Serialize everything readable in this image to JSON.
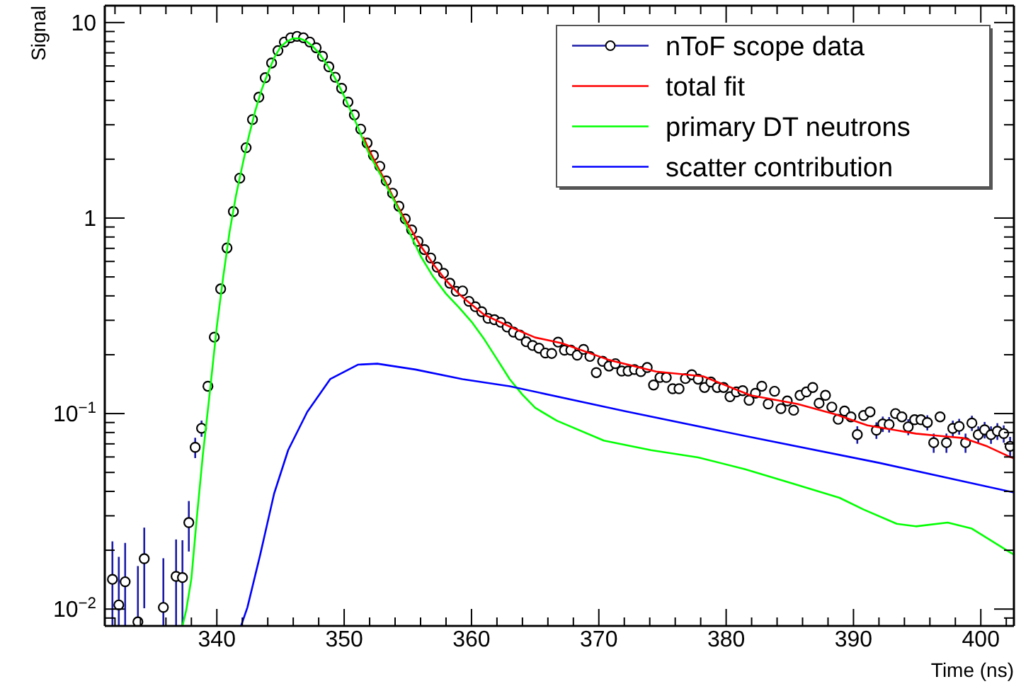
{
  "chart_data": {
    "type": "line",
    "xlabel": "Time (ns)",
    "ylabel": "Signal",
    "log": true,
    "legend": "top right",
    "grid": false,
    "xlim": [
      331.2,
      402.6
    ],
    "ylim": [
      0.0082,
      12.2
    ],
    "xticks": [
      {
        "value": 332,
        "label": null
      },
      {
        "value": 334,
        "label": null
      },
      {
        "value": 336,
        "label": null
      },
      {
        "value": 338,
        "label": null
      },
      340,
      {
        "value": 342,
        "label": null
      },
      {
        "value": 344,
        "label": null
      },
      {
        "value": 346,
        "label": null
      },
      {
        "value": 348,
        "label": null
      },
      350,
      {
        "value": 352,
        "label": null
      },
      {
        "value": 354,
        "label": null
      },
      {
        "value": 356,
        "label": null
      },
      {
        "value": 358,
        "label": null
      },
      360,
      {
        "value": 362,
        "label": null
      },
      {
        "value": 364,
        "label": null
      },
      {
        "value": 366,
        "label": null
      },
      {
        "value": 368,
        "label": null
      },
      370,
      {
        "value": 372,
        "label": null
      },
      {
        "value": 374,
        "label": null
      },
      {
        "value": 376,
        "label": null
      },
      {
        "value": 378,
        "label": null
      },
      380,
      {
        "value": 382,
        "label": null
      },
      {
        "value": 384,
        "label": null
      },
      {
        "value": 386,
        "label": null
      },
      {
        "value": 388,
        "label": null
      },
      390,
      {
        "value": 392,
        "label": null
      },
      {
        "value": 394,
        "label": null
      },
      {
        "value": 396,
        "label": null
      },
      {
        "value": 398,
        "label": null
      },
      400,
      {
        "value": 402,
        "label": null
      }
    ],
    "yticks": [
      {
        "value": 0.009,
        "label": null
      },
      {
        "value": 0.01,
        "label": "10$^{−2}$"
      },
      {
        "value": 0.02,
        "label": null
      },
      {
        "value": 0.03,
        "label": null
      },
      {
        "value": 0.04,
        "label": null
      },
      {
        "value": 0.05,
        "label": null
      },
      {
        "value": 0.06,
        "label": null
      },
      {
        "value": 0.07,
        "label": null
      },
      {
        "value": 0.08,
        "label": null
      },
      {
        "value": 0.09,
        "label": null
      },
      {
        "value": 0.1,
        "label": "10$^{−1}$"
      },
      {
        "value": 0.2,
        "label": null
      },
      {
        "value": 0.3,
        "label": null
      },
      {
        "value": 0.4,
        "label": null
      },
      {
        "value": 0.5,
        "label": null
      },
      {
        "value": 0.6,
        "label": null
      },
      {
        "value": 0.7,
        "label": null
      },
      {
        "value": 0.8,
        "label": null
      },
      {
        "value": 0.9,
        "label": null
      },
      1,
      {
        "value": 2,
        "label": null
      },
      {
        "value": 3,
        "label": null
      },
      {
        "value": 4,
        "label": null
      },
      {
        "value": 5,
        "label": null
      },
      {
        "value": 6,
        "label": null
      },
      {
        "value": 7,
        "label": null
      },
      {
        "value": 8,
        "label": null
      },
      {
        "value": 9,
        "label": null
      },
      10
    ],
    "series": [
      {
        "type": "scatter",
        "name": "nToF scope data",
        "color": "#000000",
        "marker": "circle",
        "x": [
          331.8,
          332.3,
          332.8,
          333.8,
          334.3,
          335.8,
          336.8,
          337.3,
          337.8,
          338.3,
          338.8,
          339.3,
          339.8,
          340.3,
          340.8,
          341.3,
          341.8,
          342.3,
          342.8,
          343.3,
          343.8,
          344.3,
          344.8,
          345.3,
          345.8,
          346.3,
          346.8,
          347.3,
          347.8,
          348.3,
          348.8,
          349.3,
          349.8,
          350.3,
          350.8,
          351.3,
          351.8,
          352.3,
          352.8,
          353.3,
          353.8,
          354.3,
          354.8,
          355.3,
          355.8,
          356.3,
          356.8,
          357.3,
          357.8,
          358.3,
          358.8,
          359.3,
          359.8,
          360.3,
          360.8,
          361.3,
          361.8,
          362.3,
          362.8,
          363.3,
          363.8,
          364.3,
          364.8,
          365.3,
          365.8,
          366.3,
          366.8,
          367.3,
          367.8,
          368.3,
          368.8,
          369.3,
          369.8,
          370.3,
          370.8,
          371.3,
          371.8,
          372.3,
          372.8,
          373.3,
          373.8,
          374.3,
          374.8,
          375.3,
          375.8,
          376.3,
          376.8,
          377.3,
          377.8,
          378.3,
          378.8,
          379.3,
          379.8,
          380.3,
          380.8,
          381.3,
          381.8,
          382.3,
          382.8,
          383.3,
          383.8,
          384.3,
          384.8,
          385.3,
          385.8,
          386.3,
          386.8,
          387.3,
          387.8,
          388.3,
          388.8,
          389.3,
          389.8,
          390.3,
          390.8,
          391.3,
          391.8,
          392.3,
          392.8,
          393.3,
          393.8,
          394.3,
          394.8,
          395.3,
          395.8,
          396.3,
          396.8,
          397.3,
          397.8,
          398.3,
          398.8,
          399.3,
          399.8,
          400.3,
          400.8,
          401.3,
          401.8,
          402.3
        ],
        "values": [
          0.0142,
          0.0105,
          0.0138,
          0.0086,
          0.0181,
          0.0102,
          0.0147,
          0.0145,
          0.0277,
          0.0672,
          0.0841,
          0.138,
          0.246,
          0.434,
          0.703,
          1.08,
          1.6,
          2.29,
          3.19,
          4.15,
          5.22,
          6.21,
          7.18,
          7.95,
          8.36,
          8.5,
          8.36,
          7.95,
          7.43,
          6.72,
          5.94,
          5.25,
          4.61,
          3.92,
          3.37,
          2.85,
          2.42,
          2.09,
          1.84,
          1.55,
          1.34,
          1.15,
          0.99,
          0.87,
          0.76,
          0.69,
          0.625,
          0.561,
          0.522,
          0.464,
          0.422,
          0.424,
          0.375,
          0.352,
          0.332,
          0.307,
          0.302,
          0.293,
          0.277,
          0.261,
          0.252,
          0.233,
          0.223,
          0.216,
          0.204,
          0.203,
          0.232,
          0.211,
          0.211,
          0.199,
          0.213,
          0.196,
          0.162,
          0.185,
          0.175,
          0.18,
          0.165,
          0.165,
          0.168,
          0.164,
          0.172,
          0.14,
          0.153,
          0.153,
          0.134,
          0.134,
          0.151,
          0.158,
          0.15,
          0.136,
          0.145,
          0.136,
          0.136,
          0.122,
          0.129,
          0.131,
          0.117,
          0.127,
          0.138,
          0.112,
          0.13,
          0.106,
          0.116,
          0.104,
          0.124,
          0.129,
          0.136,
          0.113,
          0.124,
          0.108,
          0.0935,
          0.103,
          0.0962,
          0.0781,
          0.0978,
          0.102,
          0.0822,
          0.0885,
          0.088,
          0.1,
          0.0962,
          0.0855,
          0.093,
          0.093,
          0.09,
          0.071,
          0.0962,
          0.071,
          0.084,
          0.086,
          0.071,
          0.0895,
          0.078,
          0.0826,
          0.078,
          0.0813,
          0.079,
          0.068
        ],
        "errors": [
          [
            0.0082,
            0.0222
          ],
          [
            0.0082,
            0.0185
          ],
          [
            0.0082,
            0.0218
          ],
          [
            0.0082,
            0.0166
          ],
          0.008,
          [
            0.0082,
            0.0182
          ],
          [
            0.0082,
            0.0227
          ],
          [
            0.0082,
            0.0225
          ],
          0.008,
          0.008,
          0.008,
          null,
          null,
          null,
          null,
          null,
          null,
          null,
          null,
          null,
          null,
          null,
          null,
          null,
          null,
          null,
          null,
          null,
          null,
          null,
          null,
          null,
          null,
          null,
          null,
          null,
          null,
          null,
          null,
          null,
          null,
          null,
          null,
          null,
          null,
          null,
          null,
          null,
          null,
          null,
          null,
          null,
          null,
          null,
          null,
          null,
          null,
          null,
          null,
          null,
          null,
          null,
          null,
          null,
          null,
          null,
          null,
          null,
          null,
          null,
          null,
          null,
          null,
          null,
          null,
          null,
          null,
          null,
          null,
          null,
          null,
          null,
          null,
          null,
          null,
          null,
          null,
          null,
          null,
          null,
          null,
          null,
          null,
          null,
          null,
          null,
          null,
          null,
          null,
          null,
          null,
          null,
          null,
          null,
          null,
          null,
          null,
          null,
          null,
          null,
          null,
          null,
          null,
          0.008,
          null,
          null,
          0.008,
          0.008,
          0.008,
          null,
          null,
          0.008,
          null,
          null,
          0.008,
          0.008,
          null,
          0.008,
          0.008,
          0.008,
          0.008,
          0.008,
          0.008,
          0.008,
          0.008,
          0.008,
          0.008,
          0.008
        ]
      },
      {
        "type": "line",
        "name": "total fit",
        "color": "#ff0000",
        "x": [
          351.5,
          352,
          352.5,
          353,
          353.5,
          354,
          354.5,
          355,
          355.5,
          356,
          356.5,
          357,
          358,
          359,
          359.6,
          361,
          363.4,
          365,
          367.1,
          370.8,
          374.5,
          378.2,
          381.9,
          385.6,
          388.6,
          391.1,
          394.9,
          396.7,
          398.6,
          400.5,
          402.3,
          402.6
        ],
        "values": [
          2.6,
          2.2,
          1.9,
          1.65,
          1.42,
          1.22,
          1.06,
          0.93,
          0.82,
          0.72,
          0.65,
          0.58,
          0.48,
          0.41,
          0.379,
          0.32,
          0.271,
          0.245,
          0.229,
          0.188,
          0.164,
          0.155,
          0.124,
          0.112,
          0.099,
          0.087,
          0.079,
          0.077,
          0.075,
          0.068,
          0.06,
          0.059
        ]
      },
      {
        "type": "line",
        "name": "primary DT neutrons",
        "color": "#00ff00",
        "x": [
          337.3,
          337.6,
          338,
          338.4,
          338.9,
          339.4,
          340,
          340.5,
          341,
          341.5,
          342,
          342.5,
          343,
          343.5,
          344,
          344.5,
          345,
          345.5,
          346,
          346.5,
          347,
          347.5,
          348,
          348.5,
          349,
          349.5,
          350,
          350.5,
          351,
          351.5,
          352,
          353,
          354,
          355,
          356,
          357,
          358,
          359,
          360,
          361,
          362,
          363,
          364,
          365,
          366.7,
          370.4,
          374.1,
          377.8,
          381.5,
          385.2,
          388.9,
          390.8,
          393.4,
          394.9,
          397.4,
          399.3,
          402.3,
          402.6
        ],
        "values": [
          0.0082,
          0.0099,
          0.0143,
          0.028,
          0.0614,
          0.12,
          0.279,
          0.5,
          0.85,
          1.3,
          1.85,
          2.6,
          3.5,
          4.5,
          5.5,
          6.6,
          7.5,
          8,
          8.3,
          8.3,
          8.05,
          7.6,
          7,
          6.3,
          5.6,
          4.9,
          4.2,
          3.55,
          3,
          2.5,
          2.1,
          1.6,
          1.2,
          0.88,
          0.64,
          0.5,
          0.41,
          0.35,
          0.295,
          0.24,
          0.19,
          0.15,
          0.125,
          0.107,
          0.092,
          0.0727,
          0.065,
          0.0597,
          0.0519,
          0.0439,
          0.0371,
          0.0323,
          0.0273,
          0.0265,
          0.0277,
          0.0258,
          0.0195,
          0.019
        ]
      },
      {
        "type": "line",
        "name": "scatter contribution",
        "color": "#0000ff",
        "x": [
          341.9,
          342.4,
          343.4,
          344.5,
          345.6,
          347.1,
          348.9,
          351.1,
          352.6,
          355.6,
          359.3,
          363,
          372,
          381.5,
          392,
          402.6
        ],
        "values": [
          0.0082,
          0.0102,
          0.0189,
          0.039,
          0.065,
          0.102,
          0.15,
          0.178,
          0.18,
          0.168,
          0.15,
          0.138,
          0.103,
          0.0768,
          0.056,
          0.0395
        ]
      }
    ]
  }
}
